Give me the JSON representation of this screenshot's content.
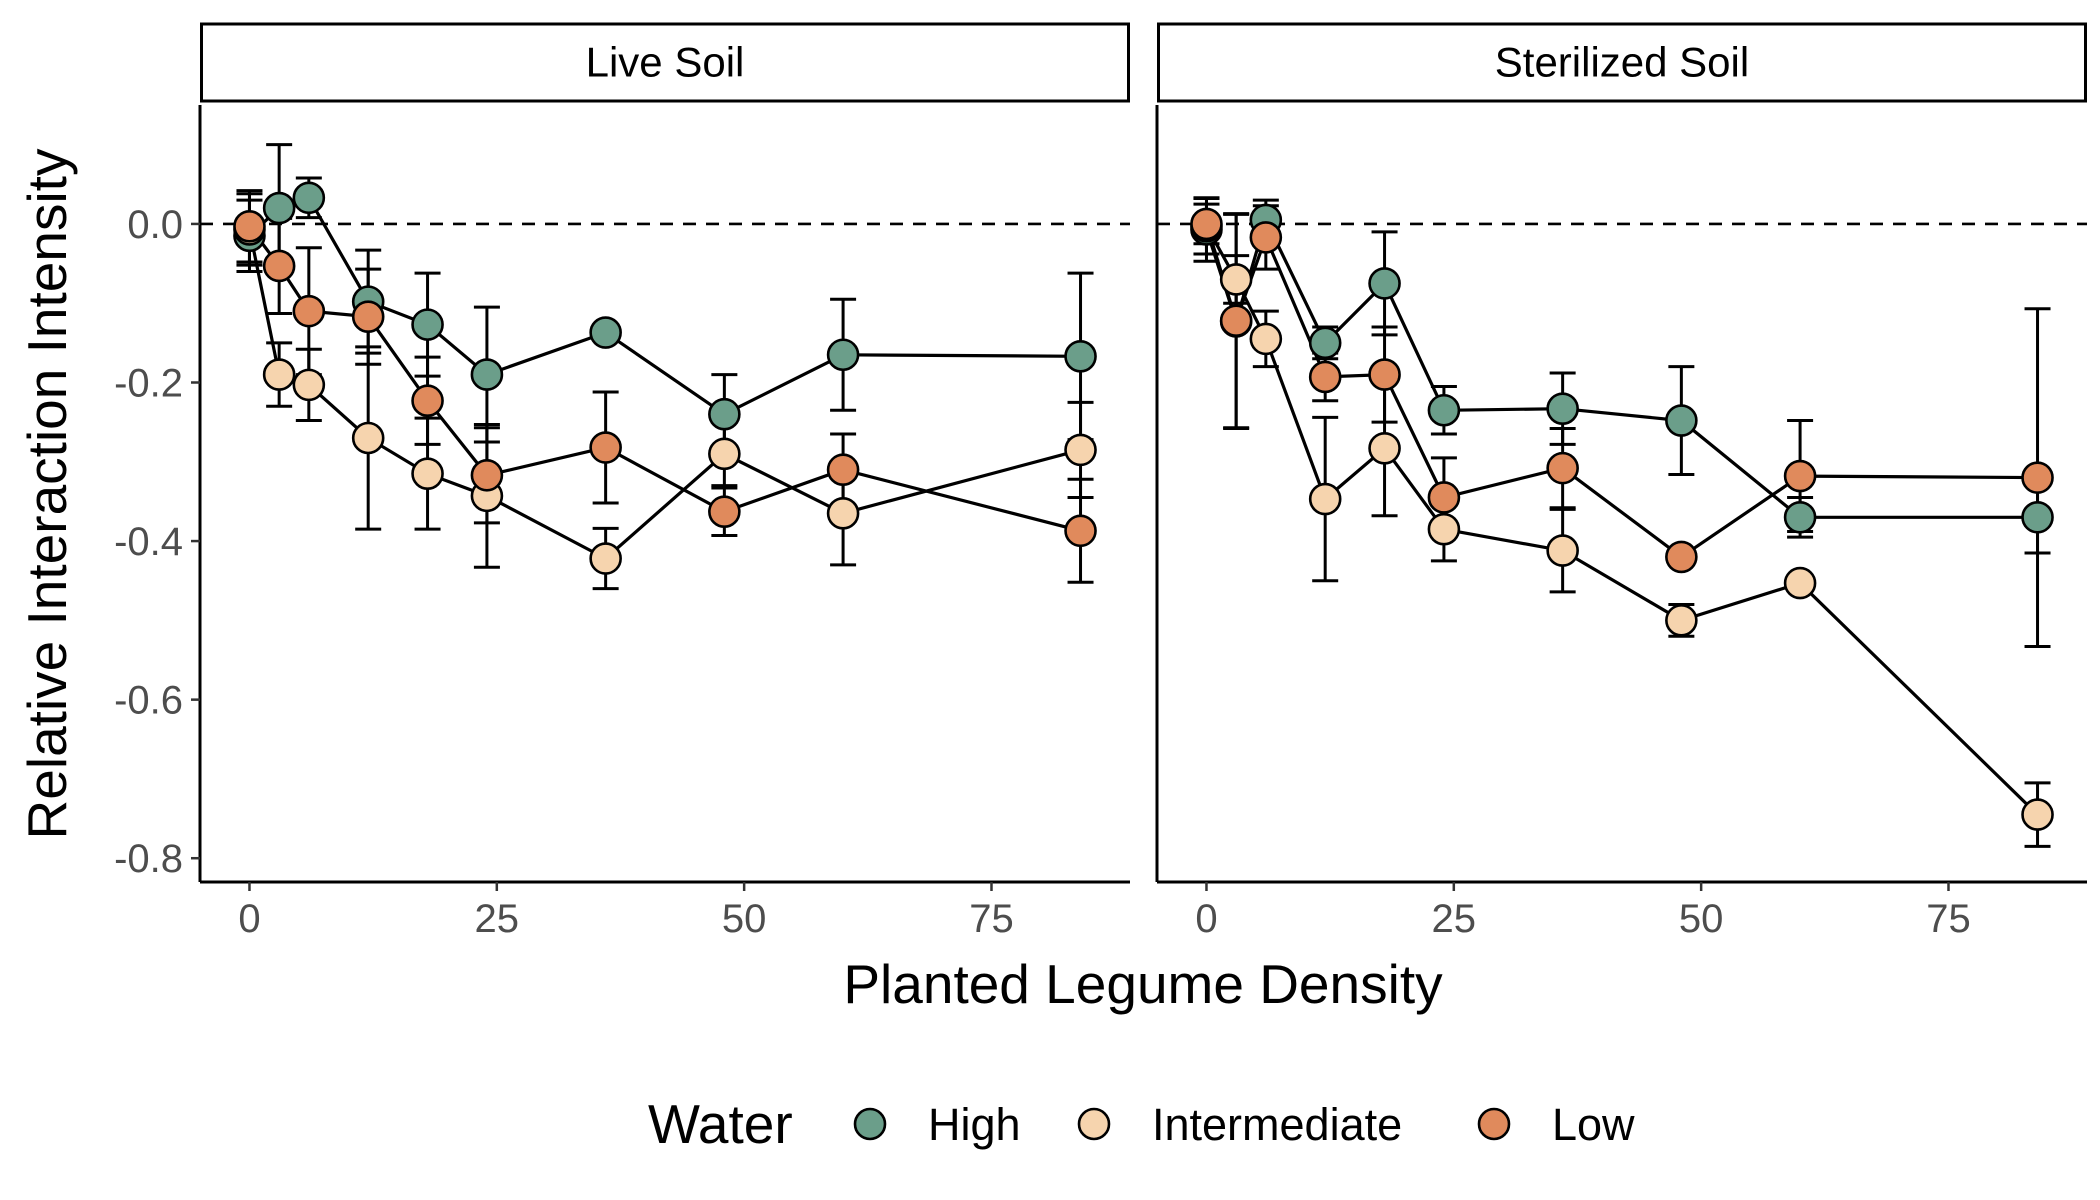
{
  "chart_data": {
    "type": "line",
    "facets": [
      "Live Soil",
      "Sterilized Soil"
    ],
    "xlabel": "Planted Legume Density",
    "ylabel": "Relative Interaction Intensity",
    "xlim": [
      -5,
      89
    ],
    "ylim": [
      -0.83,
      0.15
    ],
    "x_ticks": [
      0,
      25,
      50,
      75
    ],
    "y_ticks": [
      0.0,
      -0.2,
      -0.4,
      -0.6,
      -0.8
    ],
    "y_tick_labels": [
      "0.0",
      "-0.2",
      "-0.4",
      "-0.6",
      "-0.8"
    ],
    "reference_line": {
      "y": 0,
      "style": "dashed"
    },
    "legend": {
      "title": "Water",
      "position": "bottom",
      "entries": [
        "High",
        "Intermediate",
        "Low"
      ]
    },
    "colors": {
      "High": "#6b9e8a",
      "Intermediate": "#f6d4ae",
      "Low": "#e08a5c"
    },
    "panels": [
      {
        "facet": "Live Soil",
        "series": [
          {
            "name": "High",
            "points": [
              {
                "x": 0,
                "y": -0.015,
                "err": 0.045
              },
              {
                "x": 3,
                "y": 0.02,
                "err": 0.08
              },
              {
                "x": 6,
                "y": 0.033,
                "err": 0.025
              },
              {
                "x": 12,
                "y": -0.098,
                "err": 0.065
              },
              {
                "x": 18,
                "y": -0.127,
                "err": 0.065
              },
              {
                "x": 24,
                "y": -0.19,
                "err": 0.085
              },
              {
                "x": 36,
                "y": -0.137,
                "err": 0.0
              },
              {
                "x": 48,
                "y": -0.24,
                "err": 0.05
              },
              {
                "x": 60,
                "y": -0.165,
                "err": 0.07
              },
              {
                "x": 84,
                "y": -0.167,
                "err": 0.105
              }
            ]
          },
          {
            "name": "Intermediate",
            "points": [
              {
                "x": 0,
                "y": -0.007,
                "err": 0.045
              },
              {
                "x": 3,
                "y": -0.19,
                "err": 0.04
              },
              {
                "x": 6,
                "y": -0.203,
                "err": 0.045
              },
              {
                "x": 12,
                "y": -0.27,
                "err": 0.115
              },
              {
                "x": 18,
                "y": -0.315,
                "err": 0.07
              },
              {
                "x": 24,
                "y": -0.343,
                "err": 0.09
              },
              {
                "x": 36,
                "y": -0.422,
                "err": 0.038
              },
              {
                "x": 48,
                "y": -0.29,
                "err": 0.04
              },
              {
                "x": 60,
                "y": -0.365,
                "err": 0.065
              },
              {
                "x": 84,
                "y": -0.285,
                "err": 0.06
              }
            ]
          },
          {
            "name": "Low",
            "points": [
              {
                "x": 0,
                "y": -0.003,
                "err": 0.045
              },
              {
                "x": 3,
                "y": -0.053,
                "err": 0.06
              },
              {
                "x": 6,
                "y": -0.11,
                "err": 0.08
              },
              {
                "x": 12,
                "y": -0.117,
                "err": 0.06
              },
              {
                "x": 18,
                "y": -0.223,
                "err": 0.055
              },
              {
                "x": 24,
                "y": -0.317,
                "err": 0.06
              },
              {
                "x": 36,
                "y": -0.282,
                "err": 0.07
              },
              {
                "x": 48,
                "y": -0.363,
                "err": 0.03
              },
              {
                "x": 60,
                "y": -0.31,
                "err": 0.045
              },
              {
                "x": 84,
                "y": -0.387,
                "err": 0.065
              }
            ]
          }
        ]
      },
      {
        "facet": "Sterilized Soil",
        "series": [
          {
            "name": "High",
            "points": [
              {
                "x": 0,
                "y": -0.007,
                "err": 0.04
              },
              {
                "x": 3,
                "y": -0.123,
                "err": 0.135
              },
              {
                "x": 6,
                "y": 0.005,
                "err": 0.025
              },
              {
                "x": 12,
                "y": -0.15,
                "err": 0.02
              },
              {
                "x": 18,
                "y": -0.075,
                "err": 0.065
              },
              {
                "x": 24,
                "y": -0.235,
                "err": 0.03
              },
              {
                "x": 36,
                "y": -0.233,
                "err": 0.045
              },
              {
                "x": 48,
                "y": -0.248,
                "err": 0.068
              },
              {
                "x": 60,
                "y": -0.37,
                "err": 0.025
              },
              {
                "x": 84,
                "y": -0.37,
                "err": 0.045
              }
            ]
          },
          {
            "name": "Intermediate",
            "points": [
              {
                "x": 0,
                "y": -0.003,
                "err": 0.035
              },
              {
                "x": 3,
                "y": -0.07,
                "err": 0.03
              },
              {
                "x": 6,
                "y": -0.145,
                "err": 0.035
              },
              {
                "x": 12,
                "y": -0.347,
                "err": 0.103
              },
              {
                "x": 18,
                "y": -0.283,
                "err": 0.085
              },
              {
                "x": 24,
                "y": -0.385,
                "err": 0.04
              },
              {
                "x": 36,
                "y": -0.412,
                "err": 0.052
              },
              {
                "x": 48,
                "y": -0.5,
                "err": 0.02
              },
              {
                "x": 60,
                "y": -0.453,
                "err": 0.0
              },
              {
                "x": 84,
                "y": -0.745,
                "err": 0.04
              }
            ]
          },
          {
            "name": "Low",
            "points": [
              {
                "x": 0,
                "y": 0.0,
                "err": 0.025
              },
              {
                "x": 3,
                "y": -0.122,
                "err": 0.135
              },
              {
                "x": 6,
                "y": -0.017,
                "err": 0.04
              },
              {
                "x": 12,
                "y": -0.193,
                "err": 0.03
              },
              {
                "x": 18,
                "y": -0.19,
                "err": 0.06
              },
              {
                "x": 24,
                "y": -0.345,
                "err": 0.05
              },
              {
                "x": 36,
                "y": -0.308,
                "err": 0.05
              },
              {
                "x": 48,
                "y": -0.42,
                "err": 0.0
              },
              {
                "x": 60,
                "y": -0.318,
                "err": 0.07
              },
              {
                "x": 84,
                "y": -0.32,
                "err": 0.213
              }
            ]
          }
        ]
      }
    ]
  }
}
